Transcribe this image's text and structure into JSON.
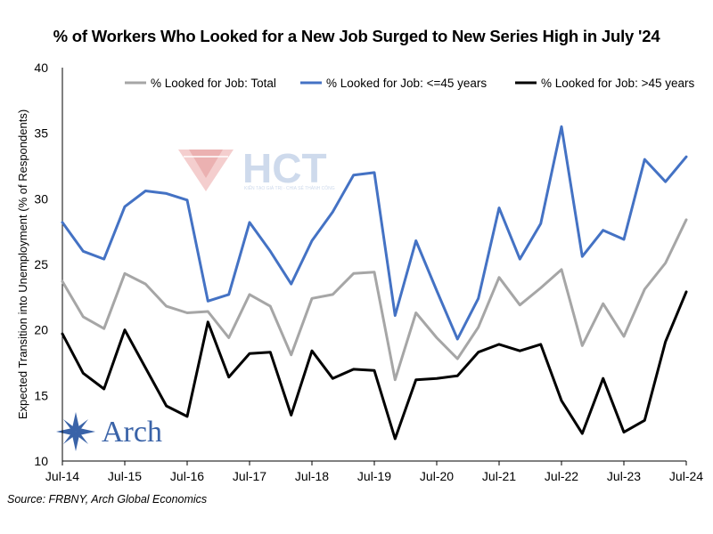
{
  "title": "% of Workers Who Looked for a New Job Surged to New Series High in July '24",
  "source": "Source: FRBNY, Arch Global Economics",
  "watermark": {
    "text": "HCT",
    "subtext": "KIẾN TẠO GIÁ TRỊ - CHIA SẺ THÀNH CÔNG"
  },
  "logo": {
    "text": "Arch"
  },
  "colors": {
    "total": "#a6a6a6",
    "under45": "#4472c4",
    "over45": "#000000",
    "logo": "#3a63a8"
  },
  "chart_data": {
    "type": "line",
    "title": "% of Workers Who Looked for a New Job Surged to New Series High in July '24",
    "ylabel": "Expected Transition into Unemployment (% of Respondents)",
    "xlabel": "",
    "ylim": [
      10,
      40
    ],
    "yticks": [
      "10",
      "15",
      "20",
      "25",
      "30",
      "35",
      "40"
    ],
    "xtick_labels": [
      "Jul-14",
      "Jul-15",
      "Jul-16",
      "Jul-17",
      "Jul-18",
      "Jul-19",
      "Jul-20",
      "Jul-21",
      "Jul-22",
      "Jul-23",
      "Jul-24"
    ],
    "x": [
      "Jul-14",
      "Nov-14",
      "Mar-15",
      "Jul-15",
      "Nov-15",
      "Mar-16",
      "Jul-16",
      "Nov-16",
      "Mar-17",
      "Jul-17",
      "Nov-17",
      "Mar-18",
      "Jul-18",
      "Nov-18",
      "Mar-19",
      "Jul-19",
      "Nov-19",
      "Mar-20",
      "Jul-20",
      "Nov-20",
      "Mar-21",
      "Jul-21",
      "Nov-21",
      "Mar-22",
      "Jul-22",
      "Nov-22",
      "Mar-23",
      "Jul-23",
      "Nov-23",
      "Mar-24",
      "Jul-24"
    ],
    "legend_position": "top",
    "grid": false,
    "series": [
      {
        "name": "% Looked for Job: Total",
        "color": "#a6a6a6",
        "values": [
          23.7,
          21.0,
          20.1,
          24.3,
          23.5,
          21.8,
          21.3,
          21.4,
          19.4,
          22.7,
          21.8,
          18.1,
          22.4,
          22.7,
          24.3,
          24.4,
          16.2,
          21.3,
          19.4,
          17.8,
          20.2,
          24.0,
          21.9,
          23.2,
          24.6,
          18.8,
          22.0,
          19.5,
          23.1,
          25.1,
          28.4
        ]
      },
      {
        "name": "% Looked for Job: <=45 years",
        "color": "#4472c4",
        "values": [
          28.2,
          26.0,
          25.4,
          29.4,
          30.6,
          30.4,
          29.9,
          22.2,
          22.7,
          28.2,
          26.0,
          23.5,
          26.8,
          29.0,
          31.8,
          32.0,
          21.1,
          26.8,
          23.0,
          19.3,
          22.4,
          29.3,
          25.4,
          28.1,
          35.5,
          25.6,
          27.6,
          26.9,
          33.0,
          31.3,
          33.2
        ]
      },
      {
        "name": "% Looked for Job: >45 years",
        "color": "#000000",
        "values": [
          19.7,
          16.7,
          15.5,
          20.0,
          17.1,
          14.2,
          13.4,
          20.6,
          16.4,
          18.2,
          18.3,
          13.5,
          18.4,
          16.3,
          17.0,
          16.9,
          11.7,
          16.2,
          16.3,
          16.5,
          18.3,
          18.9,
          18.4,
          18.9,
          14.6,
          12.1,
          16.3,
          12.2,
          13.1,
          19.1,
          22.9
        ]
      }
    ]
  }
}
